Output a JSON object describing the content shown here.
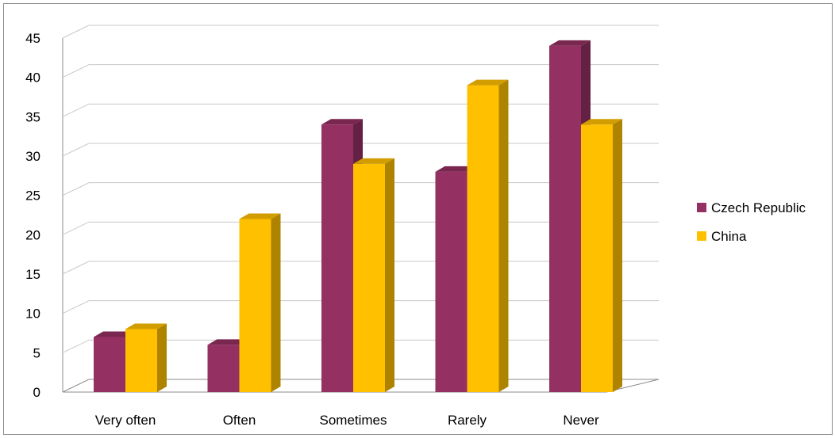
{
  "chart_data": {
    "type": "bar",
    "style": "3d-clustered-column",
    "categories": [
      "Very often",
      "Often",
      "Sometimes",
      "Rarely",
      "Never"
    ],
    "series": [
      {
        "name": "Czech Republic",
        "values": [
          7,
          6,
          34,
          28,
          44
        ],
        "color": "#953062"
      },
      {
        "name": "China",
        "values": [
          8,
          22,
          29,
          39,
          34
        ],
        "color": "#ffc000"
      }
    ],
    "ylim": [
      0,
      45
    ],
    "yticks": [
      "0",
      "5",
      "10",
      "15",
      "20",
      "25",
      "30",
      "35",
      "40",
      "45"
    ],
    "grid": true,
    "legend_position": "right",
    "title": "",
    "xlabel": "",
    "ylabel": ""
  }
}
